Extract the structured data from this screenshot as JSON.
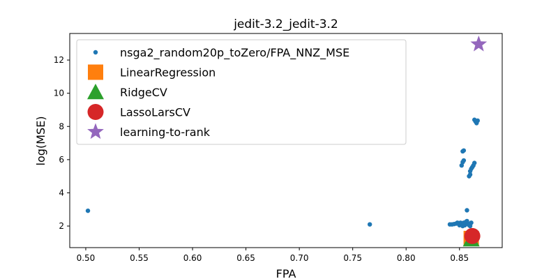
{
  "chart_data": {
    "type": "scatter",
    "title": "jedit-3.2_jedit-3.2",
    "xlabel": "FPA",
    "ylabel": "log(MSE)",
    "xlim": [
      0.485,
      0.89
    ],
    "ylim": [
      0.7,
      13.6
    ],
    "xticks": [
      "0.50",
      "0.55",
      "0.60",
      "0.65",
      "0.70",
      "0.75",
      "0.80",
      "0.85"
    ],
    "xtick_values": [
      0.5,
      0.55,
      0.6,
      0.65,
      0.7,
      0.75,
      0.8,
      0.85
    ],
    "yticks": [
      "2",
      "4",
      "6",
      "8",
      "10",
      "12"
    ],
    "ytick_values": [
      2,
      4,
      6,
      8,
      10,
      12
    ],
    "grid": false,
    "legend_position": "upper-left",
    "series": [
      {
        "name": "nsga2_random20p_toZero/FPA_NNZ_MSE",
        "marker": "circle-small",
        "color": "#1f77b4",
        "points": [
          [
            0.502,
            2.92
          ],
          [
            0.766,
            2.1
          ],
          [
            0.841,
            2.1
          ],
          [
            0.843,
            2.1
          ],
          [
            0.845,
            2.12
          ],
          [
            0.847,
            2.15
          ],
          [
            0.848,
            2.2
          ],
          [
            0.849,
            2.18
          ],
          [
            0.85,
            2.05
          ],
          [
            0.851,
            2.2
          ],
          [
            0.852,
            2.1
          ],
          [
            0.853,
            2.0
          ],
          [
            0.854,
            2.2
          ],
          [
            0.855,
            2.05
          ],
          [
            0.856,
            2.25
          ],
          [
            0.857,
            2.3
          ],
          [
            0.858,
            2.15
          ],
          [
            0.859,
            2.05
          ],
          [
            0.86,
            2.0
          ],
          [
            0.861,
            2.2
          ],
          [
            0.857,
            2.95
          ],
          [
            0.852,
            5.65
          ],
          [
            0.853,
            5.85
          ],
          [
            0.854,
            5.95
          ],
          [
            0.853,
            6.5
          ],
          [
            0.854,
            6.55
          ],
          [
            0.859,
            5.0
          ],
          [
            0.86,
            5.1
          ],
          [
            0.86,
            5.3
          ],
          [
            0.861,
            5.45
          ],
          [
            0.862,
            5.55
          ],
          [
            0.863,
            5.65
          ],
          [
            0.864,
            5.8
          ],
          [
            0.864,
            8.4
          ],
          [
            0.865,
            8.3
          ],
          [
            0.866,
            8.2
          ],
          [
            0.867,
            8.35
          ]
        ]
      },
      {
        "name": "LinearRegression",
        "marker": "square",
        "color": "#ff7f0e",
        "points": [
          [
            0.861,
            1.25
          ]
        ]
      },
      {
        "name": "RidgeCV",
        "marker": "triangle",
        "color": "#2ca02c",
        "points": [
          [
            0.861,
            1.2
          ]
        ]
      },
      {
        "name": "LassoLarsCV",
        "marker": "circle-large",
        "color": "#d62728",
        "points": [
          [
            0.862,
            1.4
          ]
        ]
      },
      {
        "name": "learning-to-rank",
        "marker": "star",
        "color": "#9467bd",
        "points": [
          [
            0.868,
            12.95
          ]
        ]
      }
    ]
  }
}
